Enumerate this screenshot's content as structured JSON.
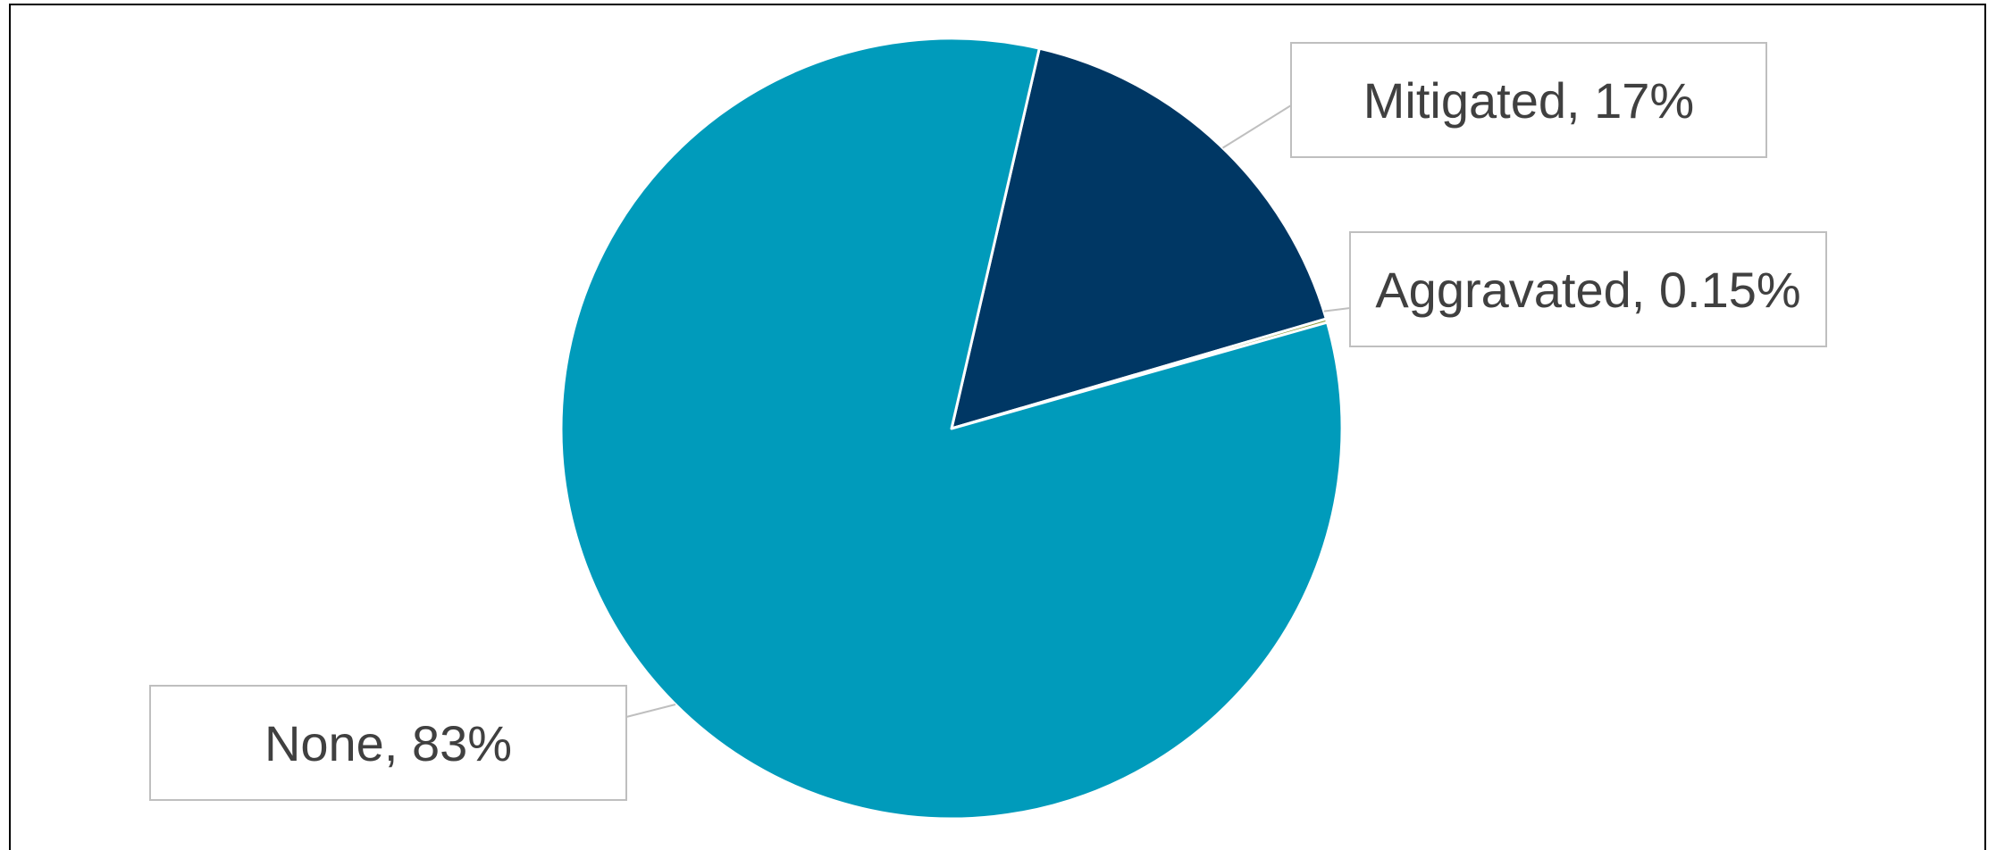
{
  "chart_data": {
    "type": "pie",
    "title": "",
    "colors": {
      "none": "#009bbb",
      "mitigated": "#003764",
      "aggravated": "#8a9a33",
      "slice_border": "#ffffff",
      "callout_border": "#bfbfbf",
      "label_text": "#404040",
      "frame_border": "#000000"
    },
    "slices": [
      {
        "name": "Mitigated",
        "value": 16.85,
        "label": "Mitigated, 17%",
        "color_key": "mitigated"
      },
      {
        "name": "Aggravated",
        "value": 0.15,
        "label": "Aggravated, 0.15%",
        "color_key": "aggravated"
      },
      {
        "name": "None",
        "value": 83.0,
        "label": "None, 83%",
        "color_key": "none"
      }
    ],
    "start_angle_deg": 13,
    "legend": "none"
  }
}
